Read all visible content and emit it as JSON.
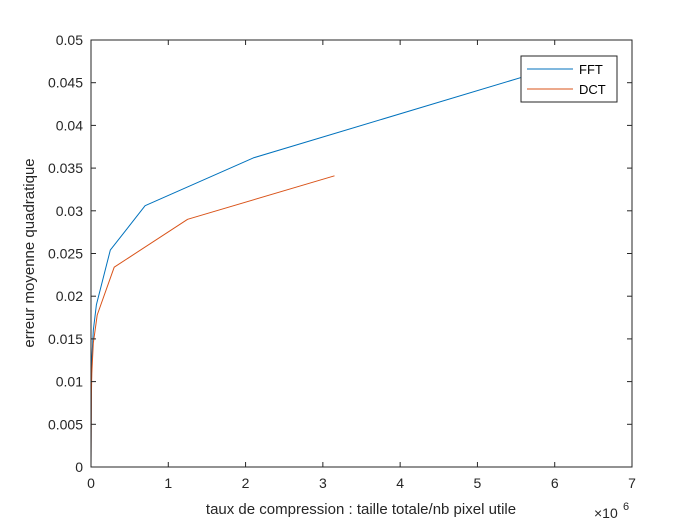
{
  "chart_data": {
    "type": "line",
    "xlabel": "taux de compression : taille totale/nb pixel utile",
    "ylabel": "erreur moyenne quadratique",
    "x_multiplier_label": "×10",
    "x_multiplier_exponent": "6",
    "xlim": [
      0,
      7
    ],
    "ylim": [
      0,
      0.05
    ],
    "x_scale": 1000000,
    "xticks": [
      0,
      1,
      2,
      3,
      4,
      5,
      6,
      7
    ],
    "yticks": [
      0,
      0.005,
      0.01,
      0.015,
      0.02,
      0.025,
      0.03,
      0.035,
      0.04,
      0.045,
      0.05
    ],
    "xtick_labels": [
      "0",
      "1",
      "2",
      "3",
      "4",
      "5",
      "6",
      "7"
    ],
    "ytick_labels": [
      "0",
      "0.005",
      "0.01",
      "0.015",
      "0.02",
      "0.025",
      "0.03",
      "0.035",
      "0.04",
      "0.045",
      "0.05"
    ],
    "legend_position": "top-right",
    "grid": false,
    "series": [
      {
        "name": "FFT",
        "color": "#0072BD",
        "x": [
          0,
          0.005,
          0.01,
          0.03,
          0.07,
          0.25,
          0.7,
          2.1,
          5.6
        ],
        "y": [
          0.0,
          0.0095,
          0.0125,
          0.016,
          0.019,
          0.0254,
          0.0306,
          0.0362,
          0.0457
        ]
      },
      {
        "name": "DCT",
        "color": "#D95319",
        "x": [
          0,
          0.005,
          0.01,
          0.03,
          0.08,
          0.3,
          1.25,
          3.15
        ],
        "y": [
          0.0,
          0.0085,
          0.011,
          0.0145,
          0.0178,
          0.0234,
          0.029,
          0.0341
        ]
      }
    ]
  }
}
